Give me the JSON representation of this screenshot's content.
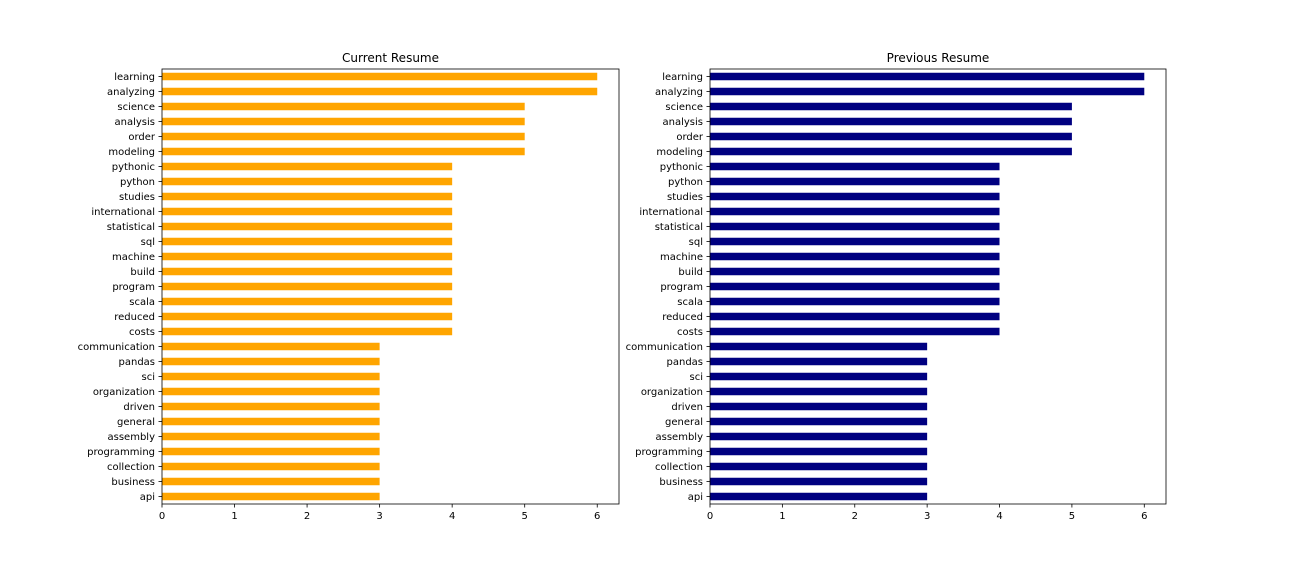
{
  "chart_data": [
    {
      "type": "bar",
      "orientation": "horizontal",
      "title": "Current Resume",
      "color": "#ffa500",
      "xlim": [
        0,
        6.3
      ],
      "xticks": [
        0,
        1,
        2,
        3,
        4,
        5,
        6
      ],
      "xlabel": "",
      "ylabel": "",
      "categories": [
        "learning",
        "analyzing",
        "science",
        "analysis",
        "order",
        "modeling",
        "pythonic",
        "python",
        "studies",
        "international",
        "statistical",
        "sql",
        "machine",
        "build",
        "program",
        "scala",
        "reduced",
        "costs",
        "communication",
        "pandas",
        "sci",
        "organization",
        "driven",
        "general",
        "assembly",
        "programming",
        "collection",
        "business",
        "api"
      ],
      "values": [
        6,
        6,
        5,
        5,
        5,
        5,
        4,
        4,
        4,
        4,
        4,
        4,
        4,
        4,
        4,
        4,
        4,
        4,
        3,
        3,
        3,
        3,
        3,
        3,
        3,
        3,
        3,
        3,
        3
      ]
    },
    {
      "type": "bar",
      "orientation": "horizontal",
      "title": "Previous Resume",
      "color": "#000080",
      "xlim": [
        0,
        6.3
      ],
      "xticks": [
        0,
        1,
        2,
        3,
        4,
        5,
        6
      ],
      "xlabel": "",
      "ylabel": "",
      "categories": [
        "learning",
        "analyzing",
        "science",
        "analysis",
        "order",
        "modeling",
        "pythonic",
        "python",
        "studies",
        "international",
        "statistical",
        "sql",
        "machine",
        "build",
        "program",
        "scala",
        "reduced",
        "costs",
        "communication",
        "pandas",
        "sci",
        "organization",
        "driven",
        "general",
        "assembly",
        "programming",
        "collection",
        "business",
        "api"
      ],
      "values": [
        6,
        6,
        5,
        5,
        5,
        5,
        4,
        4,
        4,
        4,
        4,
        4,
        4,
        4,
        4,
        4,
        4,
        4,
        3,
        3,
        3,
        3,
        3,
        3,
        3,
        3,
        3,
        3,
        3
      ]
    }
  ]
}
